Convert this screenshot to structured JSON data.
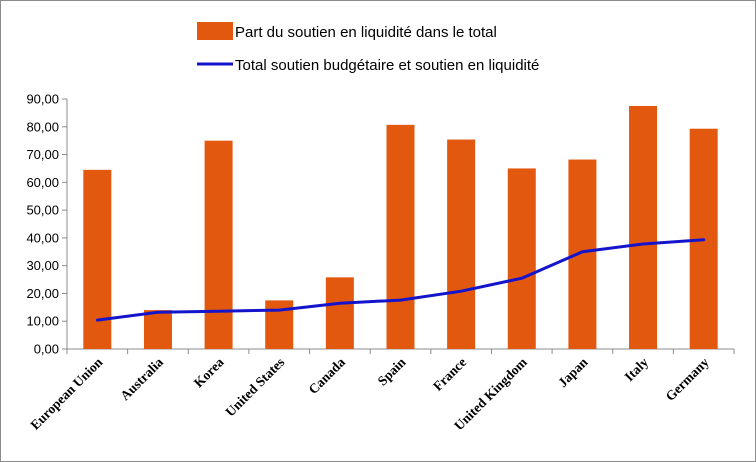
{
  "chart_data": {
    "type": "bar",
    "categories": [
      "European Union",
      "Australia",
      "Korea",
      "United States",
      "Canada",
      "Spain",
      "France",
      "United Kingdom",
      "Japan",
      "Italy",
      "Germany"
    ],
    "series": [
      {
        "name": "Part du soutien en liquidité dans le total",
        "type": "bar",
        "color": "#e2580f",
        "values": [
          64.5,
          14.0,
          75.0,
          17.5,
          25.8,
          80.7,
          75.4,
          65.0,
          68.2,
          87.5,
          79.3
        ]
      },
      {
        "name": "Total soutien budgétaire et soutien en liquidité",
        "type": "line",
        "color": "#1414cc",
        "values": [
          10.4,
          13.2,
          13.6,
          14.0,
          16.5,
          17.6,
          20.8,
          25.5,
          35.0,
          37.8,
          39.3
        ]
      }
    ],
    "y_ticks": [
      "0,00",
      "10,00",
      "20,00",
      "30,00",
      "40,00",
      "50,00",
      "60,00",
      "70,00",
      "80,00",
      "90,00"
    ],
    "ylim": [
      0,
      90
    ],
    "title": "",
    "xlabel": "",
    "ylabel": "",
    "legend_position": "top-center",
    "grid": false
  }
}
